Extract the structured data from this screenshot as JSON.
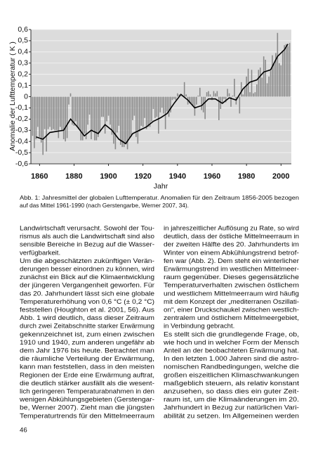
{
  "chart_data": {
    "type": "bar",
    "y_label": "Anomalie der Lufttemperatur ( K )",
    "x_label": "Jahr",
    "x": [
      1856,
      1857,
      1858,
      1859,
      1860,
      1861,
      1862,
      1863,
      1864,
      1865,
      1866,
      1867,
      1868,
      1869,
      1870,
      1871,
      1872,
      1873,
      1874,
      1875,
      1876,
      1877,
      1878,
      1879,
      1880,
      1881,
      1882,
      1883,
      1884,
      1885,
      1886,
      1887,
      1888,
      1889,
      1890,
      1891,
      1892,
      1893,
      1894,
      1895,
      1896,
      1897,
      1898,
      1899,
      1900,
      1901,
      1902,
      1903,
      1904,
      1905,
      1906,
      1907,
      1908,
      1909,
      1910,
      1911,
      1912,
      1913,
      1914,
      1915,
      1916,
      1917,
      1918,
      1919,
      1920,
      1921,
      1922,
      1923,
      1924,
      1925,
      1926,
      1927,
      1928,
      1929,
      1930,
      1931,
      1932,
      1933,
      1934,
      1935,
      1936,
      1937,
      1938,
      1939,
      1940,
      1941,
      1942,
      1943,
      1944,
      1945,
      1946,
      1947,
      1948,
      1949,
      1950,
      1951,
      1952,
      1953,
      1954,
      1955,
      1956,
      1957,
      1958,
      1959,
      1960,
      1961,
      1962,
      1963,
      1964,
      1965,
      1966,
      1967,
      1968,
      1969,
      1970,
      1971,
      1972,
      1973,
      1974,
      1975,
      1976,
      1977,
      1978,
      1979,
      1980,
      1981,
      1982,
      1983,
      1984,
      1985,
      1986,
      1987,
      1988,
      1989,
      1990,
      1991,
      1992,
      1993,
      1994,
      1995,
      1996,
      1997,
      1998,
      1999,
      2000,
      2001,
      2002,
      2003,
      2004,
      2005
    ],
    "values": [
      -0.35,
      -0.46,
      -0.38,
      -0.27,
      -0.36,
      -0.41,
      -0.52,
      -0.29,
      -0.49,
      -0.29,
      -0.27,
      -0.3,
      -0.29,
      -0.3,
      -0.3,
      -0.37,
      -0.27,
      -0.3,
      -0.38,
      -0.4,
      -0.37,
      -0.07,
      0.03,
      -0.25,
      -0.26,
      -0.22,
      -0.27,
      -0.29,
      -0.39,
      -0.39,
      -0.33,
      -0.38,
      -0.25,
      -0.16,
      -0.38,
      -0.3,
      -0.39,
      -0.39,
      -0.36,
      -0.32,
      -0.18,
      -0.18,
      -0.33,
      -0.22,
      -0.17,
      -0.25,
      -0.34,
      -0.42,
      -0.47,
      -0.32,
      -0.26,
      -0.43,
      -0.45,
      -0.45,
      -0.42,
      -0.47,
      -0.37,
      -0.36,
      -0.21,
      -0.17,
      -0.36,
      -0.42,
      -0.31,
      -0.26,
      -0.27,
      -0.19,
      -0.29,
      -0.27,
      -0.27,
      -0.22,
      -0.11,
      -0.19,
      -0.18,
      -0.33,
      -0.14,
      -0.1,
      -0.15,
      -0.29,
      -0.13,
      -0.18,
      -0.14,
      -0.03,
      -0.02,
      -0.03,
      0.03,
      0.02,
      0.0,
      0.01,
      0.13,
      0.02,
      -0.07,
      -0.06,
      -0.07,
      -0.08,
      -0.17,
      -0.07,
      0.01,
      0.08,
      -0.12,
      -0.14,
      -0.2,
      0.04,
      0.05,
      0.02,
      -0.03,
      0.05,
      0.03,
      0.05,
      -0.21,
      -0.11,
      -0.06,
      -0.02,
      -0.05,
      0.07,
      0.03,
      -0.09,
      0.01,
      0.16,
      -0.07,
      -0.01,
      -0.15,
      0.13,
      0.02,
      0.09,
      0.18,
      0.25,
      0.04,
      0.24,
      0.03,
      0.04,
      0.11,
      0.24,
      0.26,
      0.17,
      0.36,
      0.33,
      0.12,
      0.18,
      0.23,
      0.37,
      0.3,
      0.39,
      0.57,
      0.3,
      0.28,
      0.41,
      0.46,
      0.47,
      0.45,
      0.48
    ],
    "color": "#8a8a8a",
    "line": {
      "x": [
        1858,
        1862,
        1866,
        1870,
        1874,
        1878,
        1882,
        1886,
        1890,
        1894,
        1898,
        1902,
        1906,
        1910,
        1914,
        1918,
        1922,
        1926,
        1930,
        1934,
        1938,
        1942,
        1946,
        1950,
        1954,
        1958,
        1962,
        1966,
        1970,
        1974,
        1978,
        1982,
        1986,
        1990,
        1994,
        1998,
        2002,
        2004
      ],
      "values": [
        -0.36,
        -0.38,
        -0.32,
        -0.31,
        -0.3,
        -0.2,
        -0.27,
        -0.35,
        -0.3,
        -0.33,
        -0.25,
        -0.3,
        -0.38,
        -0.42,
        -0.33,
        -0.3,
        -0.27,
        -0.22,
        -0.19,
        -0.15,
        -0.06,
        0.02,
        -0.03,
        -0.1,
        -0.08,
        -0.02,
        -0.02,
        -0.06,
        -0.01,
        -0.03,
        0.07,
        0.13,
        0.15,
        0.22,
        0.24,
        0.36,
        0.42,
        0.47
      ],
      "color": "#000000"
    },
    "xlim": [
      1855,
      2006
    ],
    "ylim": [
      -0.6,
      0.6
    ],
    "xticks": [
      1860,
      1880,
      1900,
      1920,
      1940,
      1960,
      1980,
      2000
    ],
    "yticks": [
      {
        "value": 0.6,
        "label": "0,6"
      },
      {
        "value": 0.5,
        "label": "0,5"
      },
      {
        "value": 0.4,
        "label": "0,4"
      },
      {
        "value": 0.3,
        "label": "0,3"
      },
      {
        "value": 0.2,
        "label": "0,2"
      },
      {
        "value": 0.1,
        "label": "0,1"
      },
      0,
      {
        "value": -0.1,
        "label": "-0,1"
      },
      {
        "value": -0.2,
        "label": "-0,2"
      },
      {
        "value": -0.3,
        "label": "-0,3"
      },
      {
        "value": -0.4,
        "label": "-0,4"
      },
      {
        "value": -0.5,
        "label": "-0,5"
      },
      {
        "value": -0.6,
        "label": "-0,6"
      }
    ],
    "grid": true
  },
  "caption": [
    "Abb. 1:   Jahresmittel der globalen Lufttemperatur. Anomalien für den Zeitraum 1856-2005 bezogen",
    "auf das Mittel 1961-1990 (nach Gerstengarbe, Werner 2007, 34)."
  ],
  "left_column": {
    "paragraphs": [
      [
        "Landwirtschaft verursacht. Sowohl der Tou-",
        "rismus als auch die Landwirtschaft sind also",
        "sensible Bereiche in Bezug auf die Wasser-",
        "verfügbarkeit."
      ],
      [
        "Um die abgeschätzten zukünftigen Verän-",
        "derungen besser einordnen zu können, wird",
        "zunächst ein Blick auf die Klimaentwicklung",
        "der jüngeren Vergangenheit geworfen. Für",
        "das 20. Jahrhundert lässt sich eine globale",
        "Temperaturerhöhung von 0,6 °C (± 0,2 °C)",
        "feststellen (Houghton et al. 2001, 56). Aus",
        "Abb. 1 wird deutlich, dass dieser Zeitraum",
        "durch zwei Zeitabschnitte starker Erwärmung",
        "gekennzeichnet ist, zum einen zwischen",
        "1910 und 1940, zum anderen ungefähr ab",
        "dem Jahr 1976 bis heute. Betrachtet man",
        "die räumliche Verteilung der Erwärmung,",
        "kann man feststellen, dass in den meisten",
        "Regionen der Erde eine Erwärmung auftrat,",
        "die deutlich stärker ausfällt als die wesent-",
        "lich geringeren Temperaturabnahmen in den",
        "wenigen Abkühlungsgebieten (Gerstengar-",
        "be, Werner 2007). Zieht man die jüngsten",
        "Temperaturtrends für den Mittelmeerraum"
      ]
    ]
  },
  "right_column": {
    "paragraphs": [
      [
        "in jahreszeitlicher Auflösung zu Rate, so wird",
        "deutlich, dass der östliche Mittelmeerraum in",
        "der zweiten Hälfte des 20. Jahrhunderts im",
        "Winter von einem Abkühlungstrend betrof-",
        "fen war (Abb. 2). Dem steht ein winterlicher",
        "Erwärmungstrend im westlichen Mittelmeer-",
        "raum gegenüber. Dieses gegensätzliche",
        "Temperaturverhalten zwischen östlichem",
        "und westlichem Mittelmeerraum wird häufig",
        "mit dem Konzept der „mediterranen Oszillati-",
        "on“, einer Druckschaukel zwischen westlich-",
        "zentralem und östlichem Mittelmeergebiet,",
        "in Verbindung gebracht."
      ],
      [
        "Es stellt sich die grundlegende Frage, ob,",
        "wie hoch und in welcher Form der Mensch",
        "Anteil an der beobachteten Erwärmung hat.",
        "In den letzten 1.000 Jahren sind die astro-",
        "nomischen Randbedingungen, welche die",
        "großen eiszeitlichen Klimaschwankungen",
        "maßgeblich steuern, als relativ konstant",
        "anzusehen, so dass dies ein guter Zeit-",
        "raum ist, um die Klimaänderungen im 20.",
        "Jahrhundert in Bezug zur natürlichen Vari-",
        "abilität zu setzen. Im Allgemeinen werden"
      ]
    ]
  },
  "page_number": "46"
}
